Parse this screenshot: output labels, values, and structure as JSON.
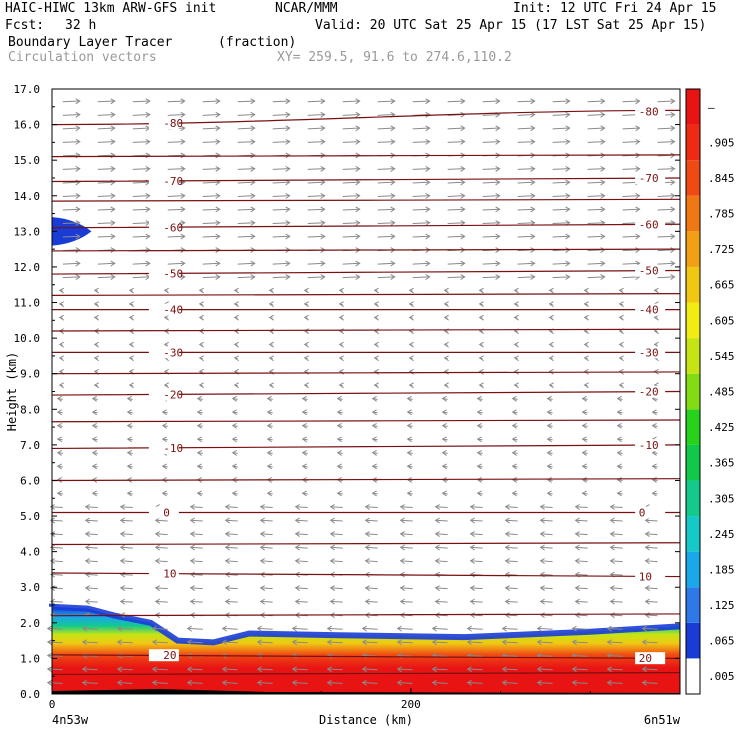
{
  "header": {
    "model_line": "HAIC-HIWC 13km ARW-GFS init",
    "org": "NCAR/MMM",
    "init": "Init: 12 UTC Fri 24 Apr 15",
    "fcst_label": "Fcst:",
    "fcst_value": "32 h",
    "valid": "Valid: 20 UTC Sat 25 Apr 15 (17 LST Sat 25 Apr 15)",
    "field": "Boundary Layer Tracer",
    "field_units": "(fraction)",
    "vectors": "Circulation vectors",
    "xy": "XY= 259.5, 91.6 to 274.6,110.2"
  },
  "chart_data": {
    "type": "heatmap",
    "ylabel": "Height (km)",
    "xlabel": "Distance (km)",
    "x_left_label": "4n53w",
    "x_right_label": "6n51w",
    "xlim": [
      0,
      350
    ],
    "ylim": [
      0,
      17
    ],
    "yticks": [
      "0.0",
      "1.0",
      "2.0",
      "3.0",
      "4.0",
      "5.0",
      "6.0",
      "7.0",
      "8.0",
      "9.0",
      "10.0",
      "11.0",
      "12.0",
      "13.0",
      "14.0",
      "15.0",
      "16.0",
      "17.0"
    ],
    "xticks": [
      {
        "value": 0,
        "label": "0"
      },
      {
        "value": 200,
        "label": "200"
      }
    ],
    "colorbar": {
      "labels": [
        ".005",
        ".065",
        ".125",
        ".185",
        ".245",
        ".305",
        ".365",
        ".425",
        ".485",
        ".545",
        ".605",
        ".665",
        ".725",
        ".785",
        ".845",
        ".905",
        "–"
      ],
      "colors": [
        "#ffffff",
        "#1a3cd6",
        "#2f78e8",
        "#1aa8e8",
        "#16c9c9",
        "#14c98c",
        "#10c84a",
        "#26d21c",
        "#82dc14",
        "#c6e414",
        "#f0ec14",
        "#f0c814",
        "#f0a014",
        "#f07814",
        "#f04a14",
        "#ee2a14",
        "#e81414"
      ]
    },
    "temperature_contours": [
      {
        "label": "-80",
        "y_left": 16.0,
        "y_right": 16.4
      },
      {
        "label": "-70",
        "y_left": 14.4,
        "y_right": 14.5
      },
      {
        "label": "-60",
        "y_left": 13.1,
        "y_right": 13.2
      },
      {
        "label": "-50",
        "y_left": 11.8,
        "y_right": 11.9
      },
      {
        "label": "-40",
        "y_left": 10.8,
        "y_right": 10.8
      },
      {
        "label": "-30",
        "y_left": 9.6,
        "y_right": 9.6
      },
      {
        "label": "-20",
        "y_left": 8.4,
        "y_right": 8.5
      },
      {
        "label": "-10",
        "y_left": 6.9,
        "y_right": 7.0
      },
      {
        "label": "0",
        "y_left": 5.1,
        "y_right": 5.1
      },
      {
        "label": "10",
        "y_left": 3.4,
        "y_right": 3.3
      },
      {
        "label": "20",
        "y_left": 1.1,
        "y_right": 1.0
      }
    ],
    "tracer_layer": {
      "top_profile": [
        {
          "x": 0,
          "y": 2.45
        },
        {
          "x": 20,
          "y": 2.4
        },
        {
          "x": 35,
          "y": 2.2
        },
        {
          "x": 55,
          "y": 2.0
        },
        {
          "x": 70,
          "y": 1.5
        },
        {
          "x": 90,
          "y": 1.45
        },
        {
          "x": 110,
          "y": 1.7
        },
        {
          "x": 160,
          "y": 1.65
        },
        {
          "x": 230,
          "y": 1.6
        },
        {
          "x": 300,
          "y": 1.75
        },
        {
          "x": 350,
          "y": 1.9
        }
      ],
      "upper_patch": {
        "x_end": 22,
        "y_bottom": 12.6,
        "y_top": 13.4
      }
    }
  }
}
